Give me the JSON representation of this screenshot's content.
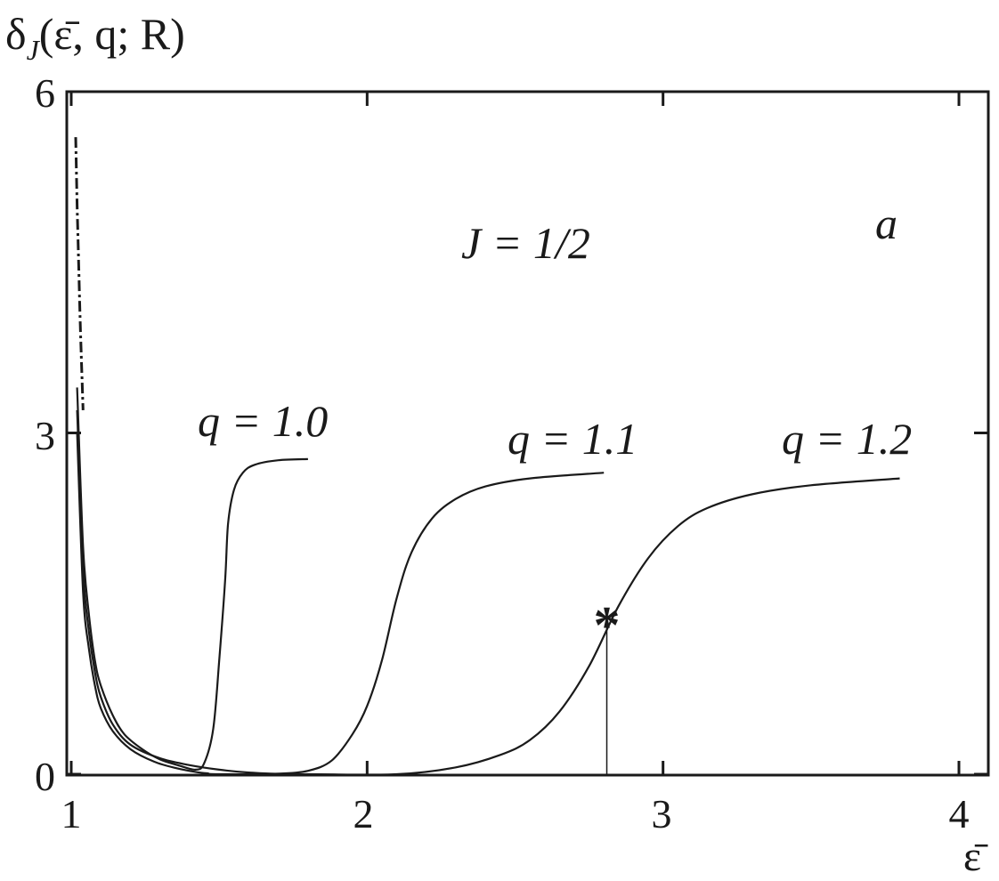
{
  "chart_data": {
    "type": "line",
    "y_axis_title": {
      "main": "δ",
      "sub": "J",
      "args": "(ε̄, q; R)"
    },
    "x_axis_title": "ε̄",
    "panel_label": "a",
    "annotation": "J = 1/2",
    "xlim": [
      1,
      4.1
    ],
    "ylim": [
      0,
      6
    ],
    "x_ticks": [
      1,
      2,
      3,
      4
    ],
    "x_tick_labels": [
      "1",
      "2",
      "3",
      "4"
    ],
    "y_ticks": [
      0,
      3,
      6
    ],
    "y_tick_labels": [
      "0",
      "3",
      "6"
    ],
    "marker": {
      "symbol": "*",
      "x": 2.81,
      "y": 1.39
    },
    "series": [
      {
        "name": "q = 1.0",
        "x": [
          1.02,
          1.04,
          1.06,
          1.08,
          1.1,
          1.14,
          1.18,
          1.24,
          1.3,
          1.36,
          1.42,
          1.45,
          1.48,
          1.5,
          1.52,
          1.53,
          1.55,
          1.58,
          1.62,
          1.7,
          1.8
        ],
        "y": [
          3.4,
          2.0,
          1.4,
          1.0,
          0.78,
          0.52,
          0.35,
          0.22,
          0.13,
          0.08,
          0.04,
          0.1,
          0.4,
          1.0,
          1.7,
          2.2,
          2.5,
          2.65,
          2.72,
          2.76,
          2.77
        ]
      },
      {
        "name": "q = 1.1",
        "x": [
          1.02,
          1.04,
          1.06,
          1.08,
          1.1,
          1.14,
          1.2,
          1.3,
          1.4,
          1.5,
          1.6,
          1.7,
          1.8,
          1.88,
          1.95,
          2.0,
          2.05,
          2.1,
          2.15,
          2.22,
          2.3,
          2.4,
          2.55,
          2.8
        ],
        "y": [
          3.2,
          1.8,
          1.25,
          0.9,
          0.68,
          0.44,
          0.26,
          0.14,
          0.08,
          0.04,
          0.015,
          0.005,
          0.03,
          0.12,
          0.35,
          0.6,
          1.0,
          1.55,
          1.95,
          2.25,
          2.42,
          2.53,
          2.6,
          2.65
        ]
      },
      {
        "name": "q = 1.2",
        "x": [
          1.02,
          1.04,
          1.06,
          1.08,
          1.1,
          1.14,
          1.2,
          1.28,
          1.36,
          1.42,
          1.46,
          1.5,
          1.8,
          2.1,
          2.3,
          2.45,
          2.55,
          2.65,
          2.75,
          2.85,
          2.95,
          3.05,
          3.15,
          3.3,
          3.5,
          3.8
        ],
        "y": [
          3.0,
          1.6,
          1.1,
          0.78,
          0.58,
          0.38,
          0.22,
          0.11,
          0.05,
          0.02,
          0.008,
          0.0,
          0.0,
          0.0,
          0.06,
          0.17,
          0.3,
          0.55,
          0.95,
          1.48,
          1.9,
          2.18,
          2.34,
          2.46,
          2.54,
          2.6
        ]
      },
      {
        "name": "",
        "style": "dash-dot",
        "x": [
          1.015,
          1.02,
          1.025,
          1.03,
          1.035,
          1.04
        ],
        "y": [
          5.6,
          5.0,
          4.5,
          4.0,
          3.6,
          3.2
        ]
      }
    ]
  }
}
